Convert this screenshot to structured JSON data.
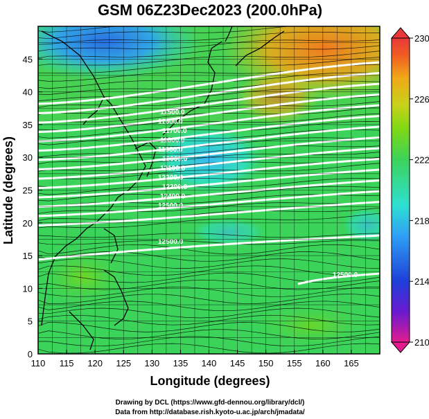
{
  "title": "GSM 06Z23Dec2023 (200.0hPa)",
  "x_axis": {
    "label": "Longitude (degrees)",
    "range": [
      110,
      170
    ],
    "ticks": [
      "110",
      "115",
      "120",
      "125",
      "130",
      "135",
      "140",
      "145",
      "150",
      "155",
      "160",
      "165"
    ]
  },
  "y_axis": {
    "label": "Latitude  (degrees)",
    "range": [
      0,
      50
    ],
    "ticks": [
      "0",
      "5",
      "10",
      "15",
      "20",
      "25",
      "30",
      "35",
      "40",
      "45"
    ]
  },
  "colorbar": {
    "range": [
      210,
      230
    ],
    "labels": [
      "230",
      "226",
      "222",
      "218",
      "214",
      "210"
    ],
    "colors": [
      "#e21c8e",
      "#6a1ad0",
      "#1e3fd8",
      "#2fa0f5",
      "#2ee0d2",
      "#3cd35a",
      "#7dd816",
      "#c8d21a",
      "#f0a818",
      "#f06020",
      "#e8383a"
    ]
  },
  "contours": {
    "labels": [
      "12500.0",
      "12400.0",
      "12300.0",
      "12200.0",
      "12100.0",
      "12000.0",
      "11900.0",
      "11800.0",
      "11700.0",
      "11600.0",
      "11500.0"
    ]
  },
  "credits": [
    "Drawing by DCL (https://www.gfd-dennou.org/library/dcl/)",
    "Data from http://database.rish.kyoto-u.ac.jp/arch/jmadata/"
  ]
}
